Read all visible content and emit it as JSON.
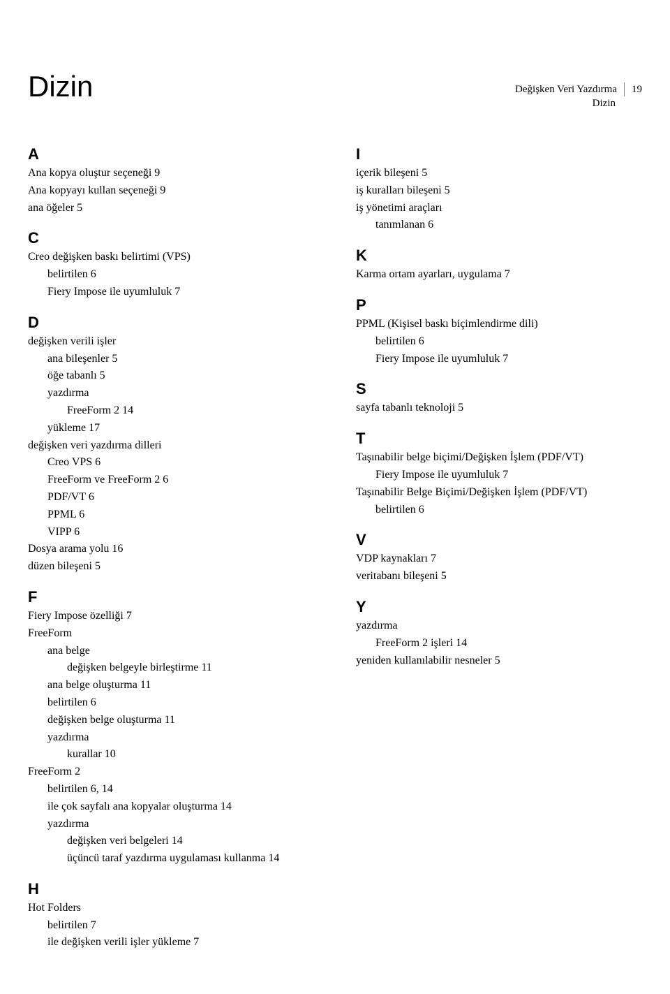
{
  "header": {
    "title": "Değişken Veri Yazdırma",
    "subtitle": "Dizin",
    "page": "19"
  },
  "main_title": "Dizin",
  "left": [
    {
      "letter": "A",
      "entries": [
        {
          "lvl": 0,
          "text": "Ana kopya oluştur seçeneği 9"
        },
        {
          "lvl": 0,
          "text": "Ana kopyayı kullan seçeneği 9"
        },
        {
          "lvl": 0,
          "text": "ana öğeler 5"
        }
      ]
    },
    {
      "letter": "C",
      "entries": [
        {
          "lvl": 0,
          "text": "Creo değişken baskı belirtimi (VPS)"
        },
        {
          "lvl": 1,
          "text": "belirtilen 6"
        },
        {
          "lvl": 1,
          "text": "Fiery Impose ile uyumluluk 7"
        }
      ]
    },
    {
      "letter": "D",
      "entries": [
        {
          "lvl": 0,
          "text": "değişken verili işler"
        },
        {
          "lvl": 1,
          "text": "ana bileşenler 5"
        },
        {
          "lvl": 1,
          "text": "öğe tabanlı 5"
        },
        {
          "lvl": 1,
          "text": "yazdırma"
        },
        {
          "lvl": 2,
          "text": "FreeForm 2 14"
        },
        {
          "lvl": 1,
          "text": "yükleme 17"
        },
        {
          "lvl": 0,
          "text": "değişken veri yazdırma dilleri"
        },
        {
          "lvl": 1,
          "text": "Creo VPS 6"
        },
        {
          "lvl": 1,
          "text": "FreeForm ve FreeForm 2 6"
        },
        {
          "lvl": 1,
          "text": "PDF/VT 6"
        },
        {
          "lvl": 1,
          "text": "PPML 6"
        },
        {
          "lvl": 1,
          "text": "VIPP 6"
        },
        {
          "lvl": 0,
          "text": "Dosya arama yolu 16"
        },
        {
          "lvl": 0,
          "text": "düzen bileşeni 5"
        }
      ]
    },
    {
      "letter": "F",
      "entries": [
        {
          "lvl": 0,
          "text": "Fiery Impose özelliği 7"
        },
        {
          "lvl": 0,
          "text": "FreeForm"
        },
        {
          "lvl": 1,
          "text": "ana belge"
        },
        {
          "lvl": 2,
          "text": "değişken belgeyle birleştirme 11"
        },
        {
          "lvl": 1,
          "text": "ana belge oluşturma 11"
        },
        {
          "lvl": 1,
          "text": "belirtilen 6"
        },
        {
          "lvl": 1,
          "text": "değişken belge oluşturma 11"
        },
        {
          "lvl": 1,
          "text": "yazdırma"
        },
        {
          "lvl": 2,
          "text": "kurallar 10"
        },
        {
          "lvl": 0,
          "text": "FreeForm 2"
        },
        {
          "lvl": 1,
          "text": "belirtilen 6, 14"
        },
        {
          "lvl": 1,
          "text": "ile çok sayfalı ana kopyalar oluşturma 14"
        },
        {
          "lvl": 1,
          "text": "yazdırma"
        },
        {
          "lvl": 2,
          "text": "değişken veri belgeleri 14"
        },
        {
          "lvl": 2,
          "text": "üçüncü taraf yazdırma uygulaması kullanma 14"
        }
      ]
    },
    {
      "letter": "H",
      "entries": [
        {
          "lvl": 0,
          "text": "Hot Folders"
        },
        {
          "lvl": 1,
          "text": "belirtilen 7"
        },
        {
          "lvl": 1,
          "text": "ile değişken verili işler yükleme 7"
        }
      ]
    }
  ],
  "right": [
    {
      "letter": "I",
      "entries": [
        {
          "lvl": 0,
          "text": "içerik bileşeni 5"
        },
        {
          "lvl": 0,
          "text": "iş kuralları bileşeni 5"
        },
        {
          "lvl": 0,
          "text": "iş yönetimi araçları"
        },
        {
          "lvl": 1,
          "text": "tanımlanan 6"
        }
      ]
    },
    {
      "letter": "K",
      "entries": [
        {
          "lvl": 0,
          "text": "Karma ortam ayarları, uygulama 7"
        }
      ]
    },
    {
      "letter": "P",
      "entries": [
        {
          "lvl": 0,
          "text": "PPML (Kişisel baskı biçimlendirme dili)"
        },
        {
          "lvl": 1,
          "text": "belirtilen 6"
        },
        {
          "lvl": 1,
          "text": "Fiery Impose ile uyumluluk 7"
        }
      ]
    },
    {
      "letter": "S",
      "entries": [
        {
          "lvl": 0,
          "text": "sayfa tabanlı teknoloji 5"
        }
      ]
    },
    {
      "letter": "T",
      "entries": [
        {
          "lvl": 0,
          "text": "Taşınabilir belge biçimi/Değişken İşlem (PDF/VT)"
        },
        {
          "lvl": 1,
          "text": "Fiery Impose ile uyumluluk 7"
        },
        {
          "lvl": 0,
          "text": "Taşınabilir Belge Biçimi/Değişken İşlem (PDF/VT)"
        },
        {
          "lvl": 1,
          "text": "belirtilen 6"
        }
      ]
    },
    {
      "letter": "V",
      "entries": [
        {
          "lvl": 0,
          "text": "VDP kaynakları 7"
        },
        {
          "lvl": 0,
          "text": "veritabanı bileşeni 5"
        }
      ]
    },
    {
      "letter": "Y",
      "entries": [
        {
          "lvl": 0,
          "text": "yazdırma"
        },
        {
          "lvl": 1,
          "text": "FreeForm 2 işleri 14"
        },
        {
          "lvl": 0,
          "text": "yeniden kullanılabilir nesneler 5"
        }
      ]
    }
  ]
}
